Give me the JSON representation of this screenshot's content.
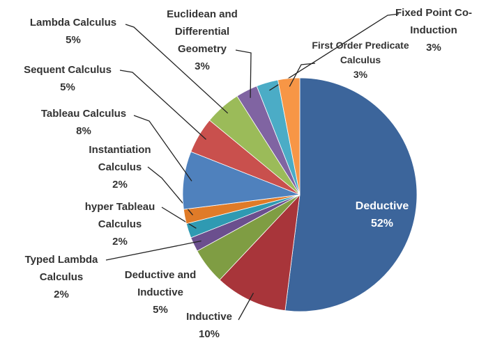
{
  "chart_data": {
    "type": "pie",
    "categories": [
      "Deductive",
      "Inductive",
      "Deductive and Inductive",
      "Typed Lambda Calculus",
      "hyper Tableau Calculus",
      "Instantiation Calculus",
      "Tableau Calculus",
      "Sequent Calculus",
      "Lambda Calculus",
      "Euclidean and Differential Geometry",
      "Fixed Point Co-Induction",
      "First Order Predicate Calculus"
    ],
    "values": [
      52,
      10,
      5,
      2,
      2,
      2,
      8,
      5,
      5,
      3,
      3,
      3
    ],
    "value_labels": [
      "52%",
      "10%",
      "5%",
      "2%",
      "2%",
      "2%",
      "8%",
      "5%",
      "5%",
      "3%",
      "3%",
      "3%"
    ],
    "colors": [
      "#3c659b",
      "#a8353a",
      "#7f9d43",
      "#6b4f8e",
      "#2f9ab2",
      "#e07b28",
      "#4f81bd",
      "#c9504d",
      "#9bbb59",
      "#8064a2",
      "#4bacc6",
      "#f79646"
    ],
    "start_angle": 90,
    "direction": "clockwise"
  }
}
